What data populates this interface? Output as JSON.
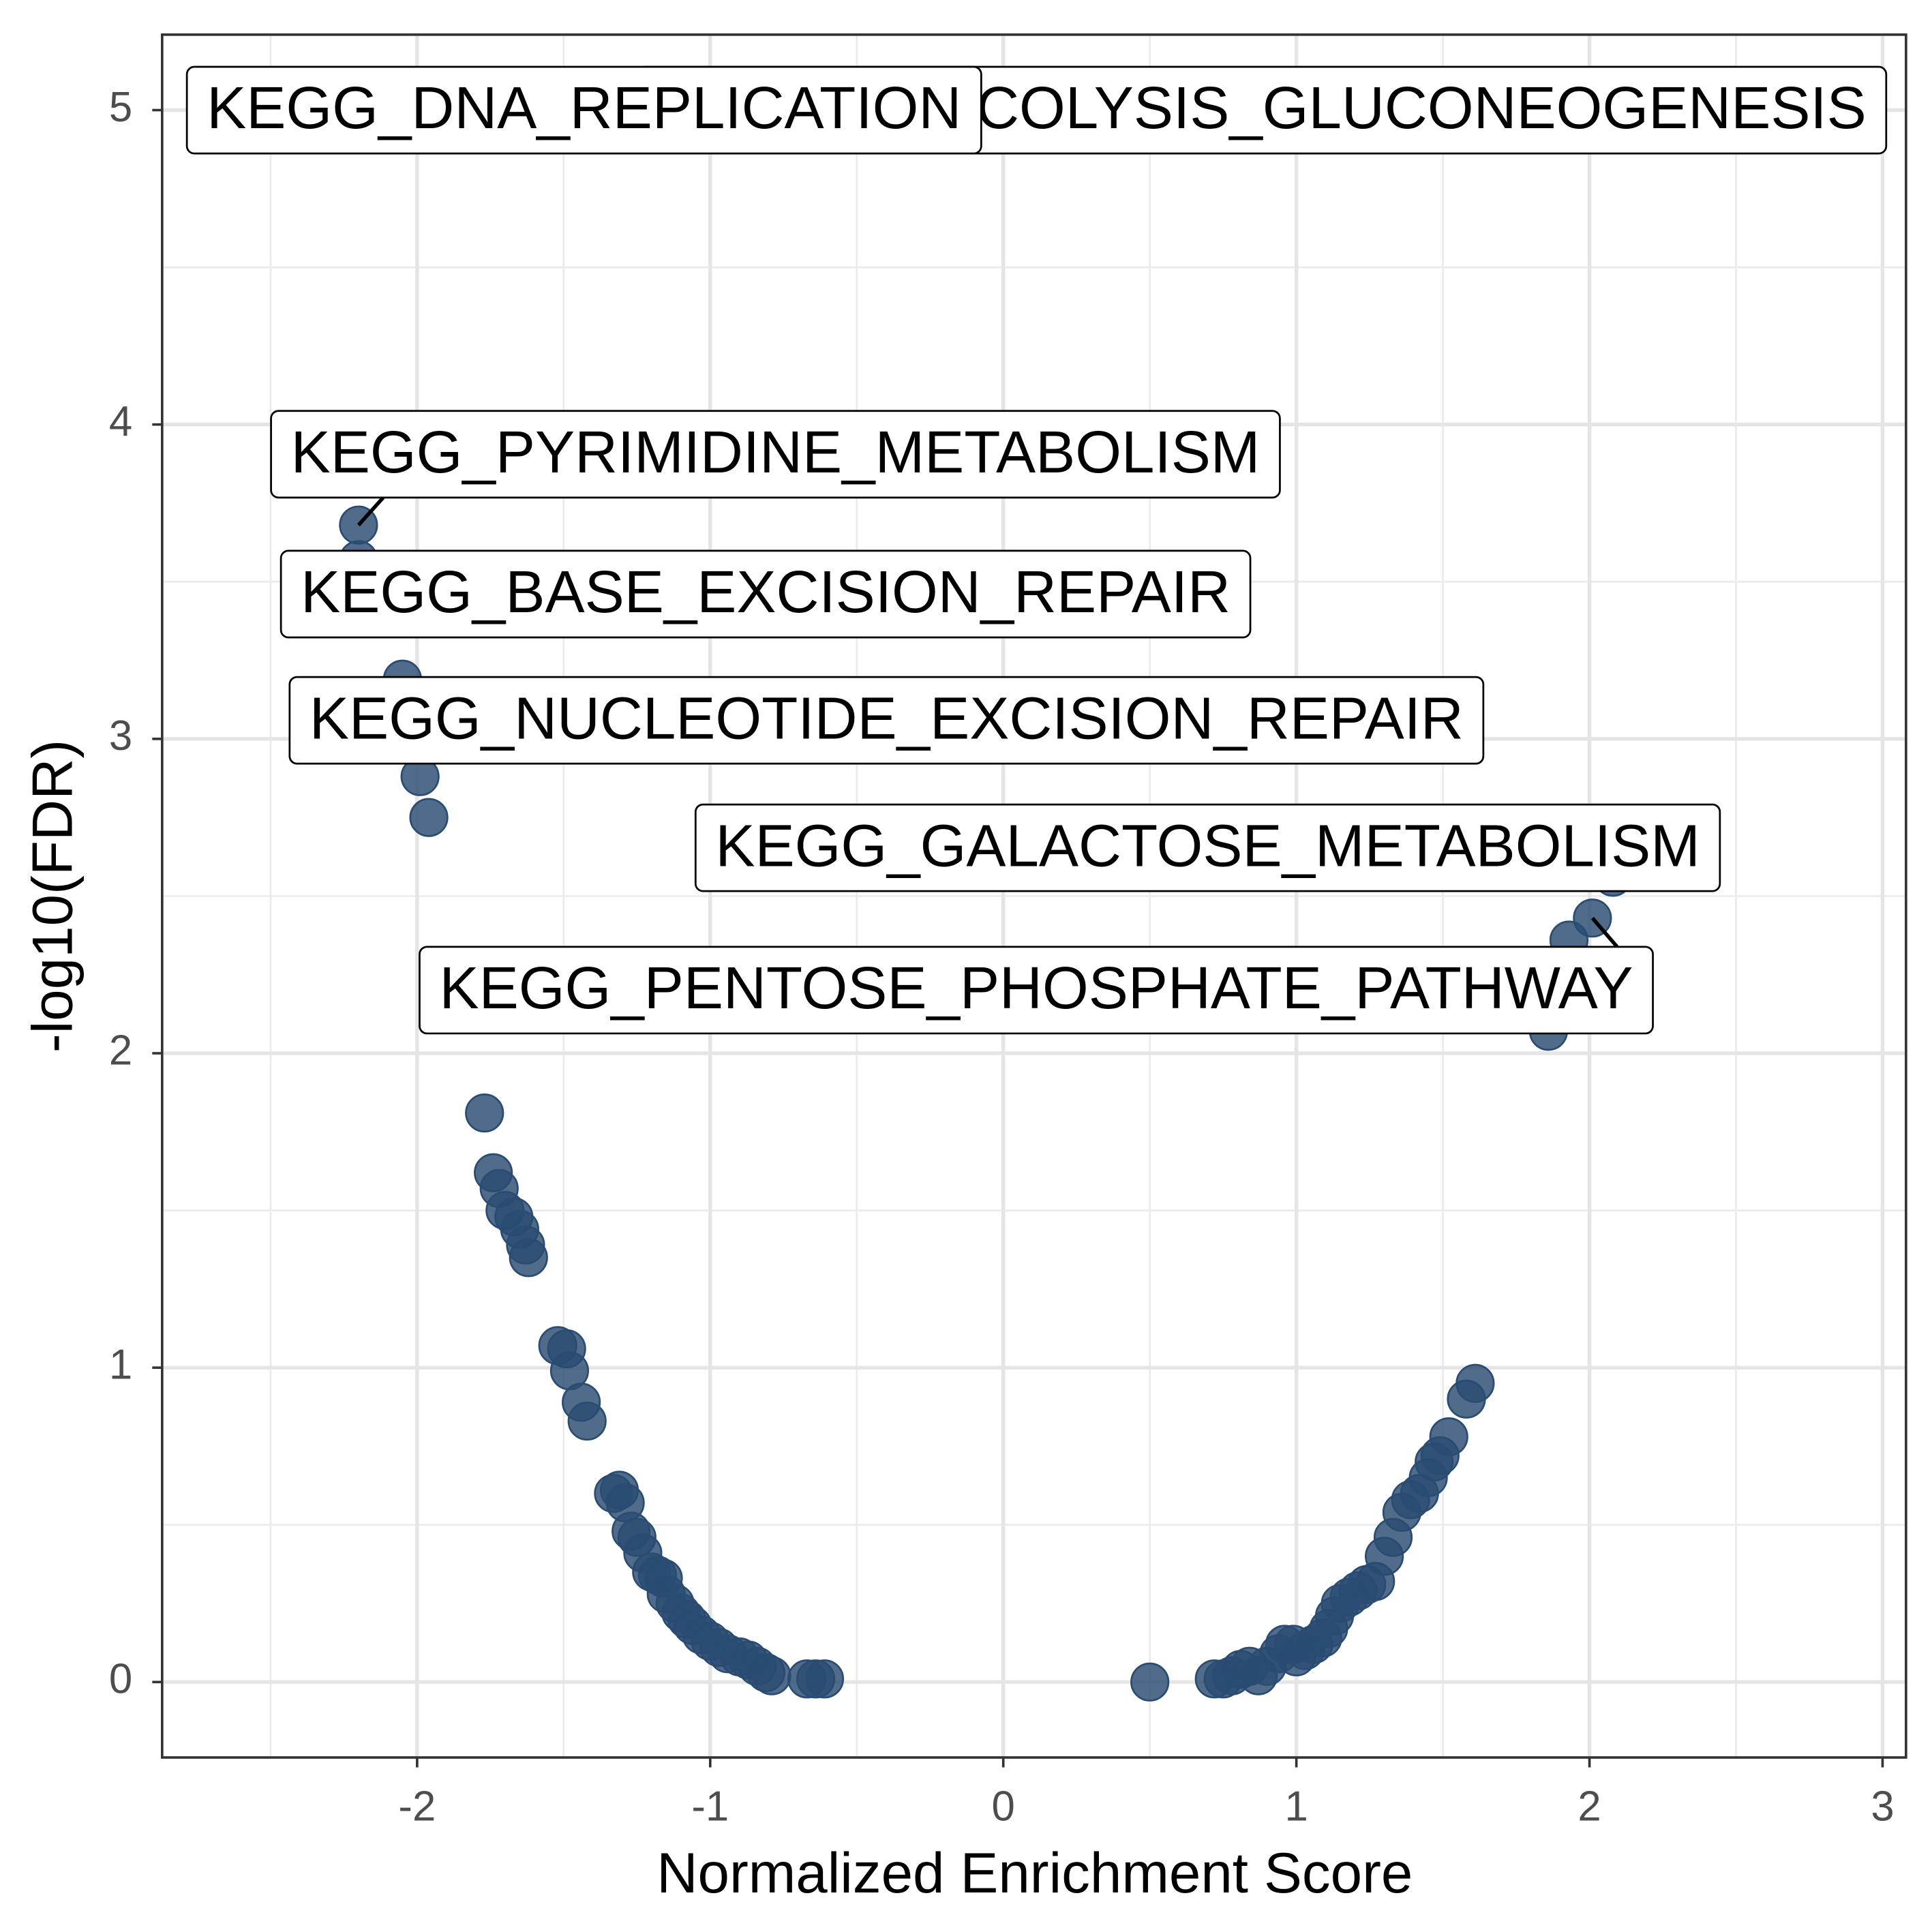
{
  "chart_data": {
    "type": "scatter",
    "xlabel": "Normalized Enrichment Score",
    "ylabel": "-log10(FDR)",
    "color": "#2b4c72",
    "grid": true,
    "xlim": [
      -2.87,
      3.08
    ],
    "ylim": [
      -0.24,
      5.24
    ],
    "xticks": [
      -2,
      -1,
      0,
      1,
      2,
      3
    ],
    "yticks": [
      0,
      1,
      2,
      3,
      4,
      5
    ],
    "x_minor_grid": [
      -2.5,
      -1.5,
      -0.5,
      0.5,
      1.5,
      2.5
    ],
    "y_minor_grid": [
      0.5,
      1.5,
      2.5,
      3.5,
      4.5
    ],
    "x": [
      2.2,
      -2.0,
      -2.2,
      -2.2,
      -2.05,
      2.08,
      2.01,
      -1.99,
      -1.96,
      1.93,
      1.86,
      -1.77,
      -1.74,
      -1.72,
      -1.7,
      -1.67,
      -1.65,
      -1.63,
      -1.62,
      -1.52,
      -1.49,
      -1.48,
      -1.44,
      -1.42,
      -1.33,
      -1.31,
      -1.29,
      -1.27,
      -1.25,
      -1.23,
      -1.2,
      -1.18,
      -1.16,
      -1.15,
      -1.12,
      -1.1,
      -1.08,
      -1.06,
      -1.03,
      -1.0,
      -0.97,
      -0.94,
      -0.9,
      -0.87,
      -0.84,
      -0.81,
      -0.79,
      -0.67,
      -0.64,
      -0.61,
      0.5,
      0.72,
      0.75,
      0.78,
      0.81,
      0.84,
      0.87,
      0.9,
      0.94,
      0.96,
      0.99,
      1.0,
      1.03,
      1.06,
      1.09,
      1.11,
      1.13,
      1.15,
      1.18,
      1.21,
      1.24,
      1.27,
      1.3,
      1.33,
      1.36,
      1.39,
      1.42,
      1.45,
      1.47,
      1.49,
      1.52,
      1.58,
      1.61
    ],
    "values": [
      5.0,
      5.0,
      3.68,
      3.57,
      3.19,
      2.56,
      2.43,
      2.88,
      2.75,
      2.36,
      2.07,
      1.81,
      1.62,
      1.57,
      1.5,
      1.48,
      1.44,
      1.39,
      1.35,
      1.07,
      1.06,
      0.99,
      0.89,
      0.83,
      0.6,
      0.61,
      0.57,
      0.48,
      0.46,
      0.41,
      0.35,
      0.34,
      0.33,
      0.28,
      0.25,
      0.22,
      0.2,
      0.18,
      0.15,
      0.13,
      0.11,
      0.09,
      0.08,
      0.07,
      0.05,
      0.03,
      0.02,
      0.01,
      0.01,
      0.01,
      0.0,
      0.01,
      0.01,
      0.02,
      0.04,
      0.05,
      0.02,
      0.05,
      0.09,
      0.12,
      0.12,
      0.08,
      0.1,
      0.12,
      0.14,
      0.17,
      0.21,
      0.25,
      0.27,
      0.29,
      0.31,
      0.32,
      0.4,
      0.46,
      0.54,
      0.58,
      0.6,
      0.65,
      0.7,
      0.72,
      0.78,
      0.9,
      0.95
    ],
    "labels": [
      "KEGG_GLYCOLYSIS_GLUCONEOGENESIS",
      "KEGG_DNA_REPLICATION",
      "KEGG_PYRIMIDINE_METABOLISM",
      "KEGG_BASE_EXCISION_REPAIR",
      "KEGG_NUCLEOTIDE_EXCISION_REPAIR",
      "KEGG_GALACTOSE_METABOLISM",
      "KEGG_PENTOSE_PHOSPHATE_PATHWAY",
      null,
      null,
      null,
      null,
      null,
      null,
      null,
      null,
      null,
      null,
      null,
      null,
      null,
      null,
      null,
      null,
      null,
      null,
      null,
      null,
      null,
      null,
      null,
      null,
      null,
      null,
      null,
      null,
      null,
      null,
      null,
      null,
      null,
      null,
      null,
      null,
      null,
      null,
      null,
      null,
      null,
      null,
      null,
      null,
      null,
      null,
      null,
      null,
      null,
      null,
      null,
      null,
      null,
      null,
      null,
      null,
      null,
      null,
      null,
      null,
      null,
      null,
      null,
      null,
      null,
      null,
      null,
      null,
      null,
      null,
      null,
      null,
      null,
      null,
      null,
      null
    ]
  }
}
